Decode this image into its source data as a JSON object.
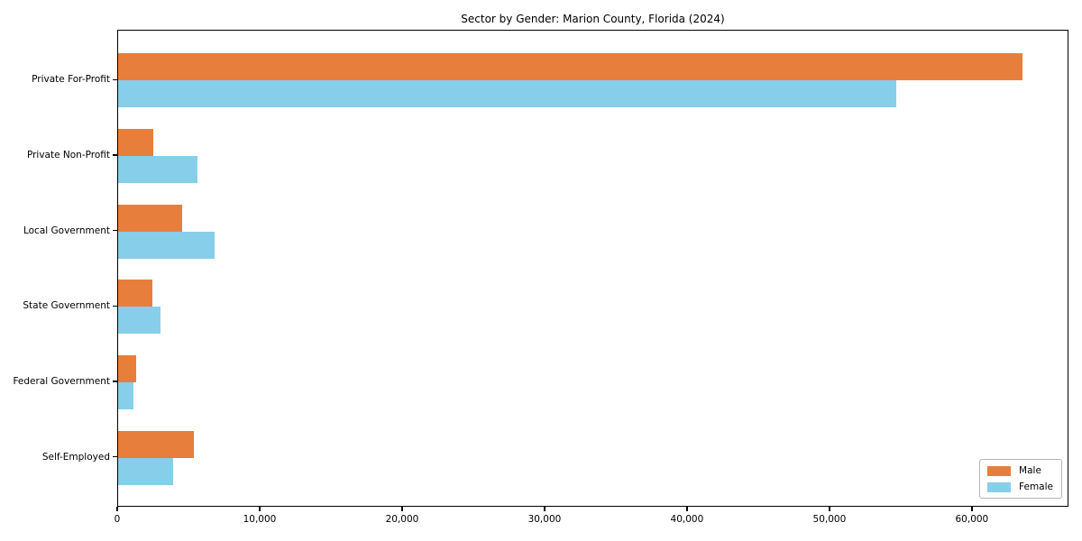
{
  "chart_data": {
    "type": "bar",
    "orientation": "horizontal",
    "title": "Sector by Gender: Marion County, Florida (2024)",
    "categories": [
      "Private For-Profit",
      "Private Non-Profit",
      "Local Government",
      "State Government",
      "Federal Government",
      "Self-Employed"
    ],
    "series": [
      {
        "name": "Male",
        "color": "#e87e3c",
        "values": [
          63600,
          2470,
          4520,
          2390,
          1270,
          5330
        ]
      },
      {
        "name": "Female",
        "color": "#87ceeb",
        "values": [
          54700,
          5590,
          6790,
          2990,
          1060,
          3900
        ]
      }
    ],
    "xlabel": "",
    "ylabel": "",
    "xlim": [
      0,
      66780
    ],
    "x_ticks": [
      {
        "value": 0,
        "label": "0"
      },
      {
        "value": 10000,
        "label": "10,000"
      },
      {
        "value": 20000,
        "label": "20,000"
      },
      {
        "value": 30000,
        "label": "30,000"
      },
      {
        "value": 40000,
        "label": "40,000"
      },
      {
        "value": 50000,
        "label": "50,000"
      },
      {
        "value": 60000,
        "label": "60,000"
      }
    ],
    "grid": false,
    "legend_position": "lower right",
    "axis_color": "#000000"
  }
}
